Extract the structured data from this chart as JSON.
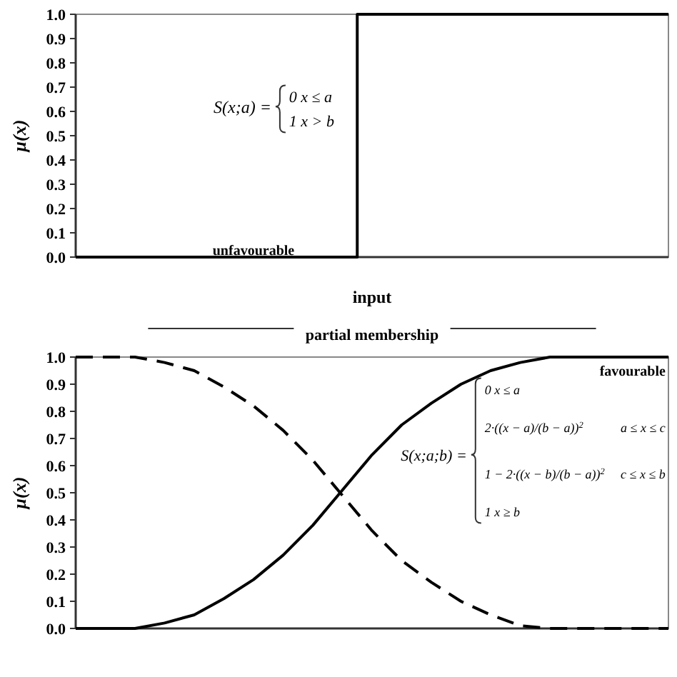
{
  "chart_data": [
    {
      "type": "step",
      "ylabel": "μ(x)",
      "xlabel": "input",
      "categories": [
        null,
        null,
        null,
        null,
        null,
        null,
        null,
        null,
        null,
        null,
        null,
        null,
        null,
        null,
        null,
        null,
        null,
        null,
        null,
        null,
        null,
        null,
        null,
        null,
        null,
        null,
        null,
        null,
        null,
        null,
        null,
        null,
        null,
        null,
        null,
        null,
        null,
        null,
        null,
        null,
        null
      ],
      "ylim": [
        0,
        1
      ],
      "yticks": [
        {
          "value": 0,
          "label": "0.0"
        },
        {
          "value": 0.1,
          "label": "0.1"
        },
        {
          "value": 0.2,
          "label": "0.2"
        },
        {
          "value": 0.3,
          "label": "0.3"
        },
        {
          "value": 0.4,
          "label": "0.4"
        },
        {
          "value": 0.5,
          "label": "0.5"
        },
        {
          "value": 0.6,
          "label": "0.6"
        },
        {
          "value": 0.7,
          "label": "0.7"
        },
        {
          "value": 0.8,
          "label": "0.8"
        },
        {
          "value": 0.9,
          "label": "0.9"
        },
        {
          "value": 1,
          "label": "1.0"
        }
      ],
      "tick_labels": "y",
      "grid": false,
      "series": [
        {
          "color": "#000000",
          "values": [
            0,
            0,
            0,
            0,
            0,
            0,
            0,
            0,
            0,
            0,
            0,
            0,
            0,
            0,
            0,
            0,
            0,
            0,
            0,
            0,
            1,
            1,
            1,
            1,
            1,
            1,
            1,
            1,
            1,
            1,
            1,
            1,
            1,
            1,
            1,
            1,
            1,
            1,
            1,
            1,
            1
          ],
          "line_style": "solid"
        }
      ],
      "annotations": [
        "S(x;a) =",
        "0   x ≤ a",
        "1   x > b",
        "unfavourable"
      ]
    },
    {
      "type": "line",
      "ylabel": "μ(x)",
      "categories": [
        null,
        null,
        null,
        null,
        null,
        null,
        null,
        null,
        null,
        null,
        null,
        null,
        null,
        null,
        null,
        null,
        null,
        null,
        null,
        null,
        null
      ],
      "ylim": [
        0,
        1
      ],
      "yticks": [
        {
          "value": 0,
          "label": "0.0"
        },
        {
          "value": 0.1,
          "label": "0.1"
        },
        {
          "value": 0.2,
          "label": "0.2"
        },
        {
          "value": 0.3,
          "label": "0.3"
        },
        {
          "value": 0.4,
          "label": "0.4"
        },
        {
          "value": 0.5,
          "label": "0.5"
        },
        {
          "value": 0.6,
          "label": "0.6"
        },
        {
          "value": 0.7,
          "label": "0.7"
        },
        {
          "value": 0.8,
          "label": "0.8"
        },
        {
          "value": 0.9,
          "label": "0.9"
        },
        {
          "value": 1,
          "label": "1.0"
        }
      ],
      "tick_labels": "y",
      "grid": false,
      "series": [
        {
          "color": "#000000",
          "line_style": "solid",
          "values": [
            0,
            0,
            0,
            0.02,
            0.05,
            0.11,
            0.18,
            0.27,
            0.38,
            0.51,
            0.64,
            0.75,
            0.83,
            0.9,
            0.95,
            0.98,
            1,
            1,
            1,
            1,
            1
          ]
        },
        {
          "color": "#000000",
          "line_style": "dashed",
          "values": [
            1,
            1,
            1,
            0.98,
            0.95,
            0.89,
            0.82,
            0.73,
            0.62,
            0.49,
            0.36,
            0.25,
            0.17,
            0.1,
            0.05,
            0.01,
            0,
            0,
            0,
            0,
            0
          ]
        }
      ],
      "annotations": [
        "partial membership",
        "favourable",
        "S(x;a;b) =",
        "0   x ≤ a",
        "2·((x − a)/(b − a))$^{2}$",
        "a ≤ x ≤ c",
        "1 − 2·((x − b)/(b − a))$^{2}$",
        "c ≤ x ≤ b",
        "1   x ≥ b"
      ]
    }
  ]
}
